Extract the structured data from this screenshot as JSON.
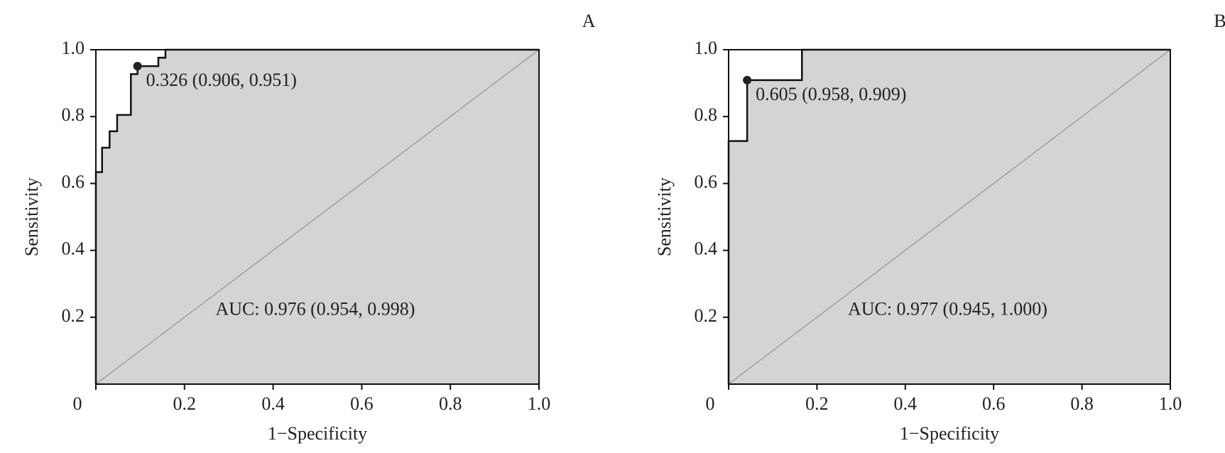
{
  "chart_data": [
    {
      "type": "roc",
      "title": "A",
      "xlabel": "1−Specificity",
      "ylabel": "Sensitivity",
      "x": [
        0,
        0,
        0.014,
        0.014,
        0.031,
        0.031,
        0.048,
        0.048,
        0.079,
        0.079,
        0.094,
        0.094,
        0.141,
        0.141,
        0.157,
        0.157,
        1
      ],
      "y": [
        0,
        0.634,
        0.634,
        0.707,
        0.707,
        0.756,
        0.756,
        0.805,
        0.805,
        0.927,
        0.927,
        0.951,
        0.951,
        0.976,
        0.976,
        1,
        1
      ],
      "point": {
        "x": 0.094,
        "y": 0.951,
        "label": "0.326 (0.906, 0.951)"
      },
      "auc_label": "AUC: 0.976 (0.954, 0.998)",
      "xlim": [
        0,
        1
      ],
      "ylim": [
        0,
        1
      ],
      "xticks": [
        0,
        0.2,
        0.4,
        0.6,
        0.8,
        {
          "value": 1,
          "label": "1.0"
        }
      ],
      "yticks": [
        0.2,
        0.4,
        0.6,
        0.8,
        {
          "value": 1,
          "label": "1.0"
        }
      ],
      "fill_color": "#d4d4d6",
      "line_color": "#111111",
      "diagonal_color": "#a0a0a0"
    },
    {
      "type": "roc",
      "title": "B",
      "xlabel": "1−Specificity",
      "ylabel": "Sensitivity",
      "x": [
        0,
        0,
        0.042,
        0.042,
        0.166,
        0.166,
        1
      ],
      "y": [
        0,
        0.727,
        0.727,
        0.909,
        0.909,
        1,
        1
      ],
      "point": {
        "x": 0.042,
        "y": 0.909,
        "label": "0.605 (0.958, 0.909)"
      },
      "auc_label": "AUC: 0.977 (0.945, 1.000)",
      "xlim": [
        0,
        1
      ],
      "ylim": [
        0,
        1
      ],
      "xticks": [
        0,
        0.2,
        0.4,
        0.6,
        0.8,
        {
          "value": 1,
          "label": "1.0"
        }
      ],
      "yticks": [
        0.2,
        0.4,
        0.6,
        0.8,
        {
          "value": 1,
          "label": "1.0"
        }
      ],
      "fill_color": "#d4d4d6",
      "line_color": "#111111",
      "diagonal_color": "#a0a0a0"
    }
  ]
}
